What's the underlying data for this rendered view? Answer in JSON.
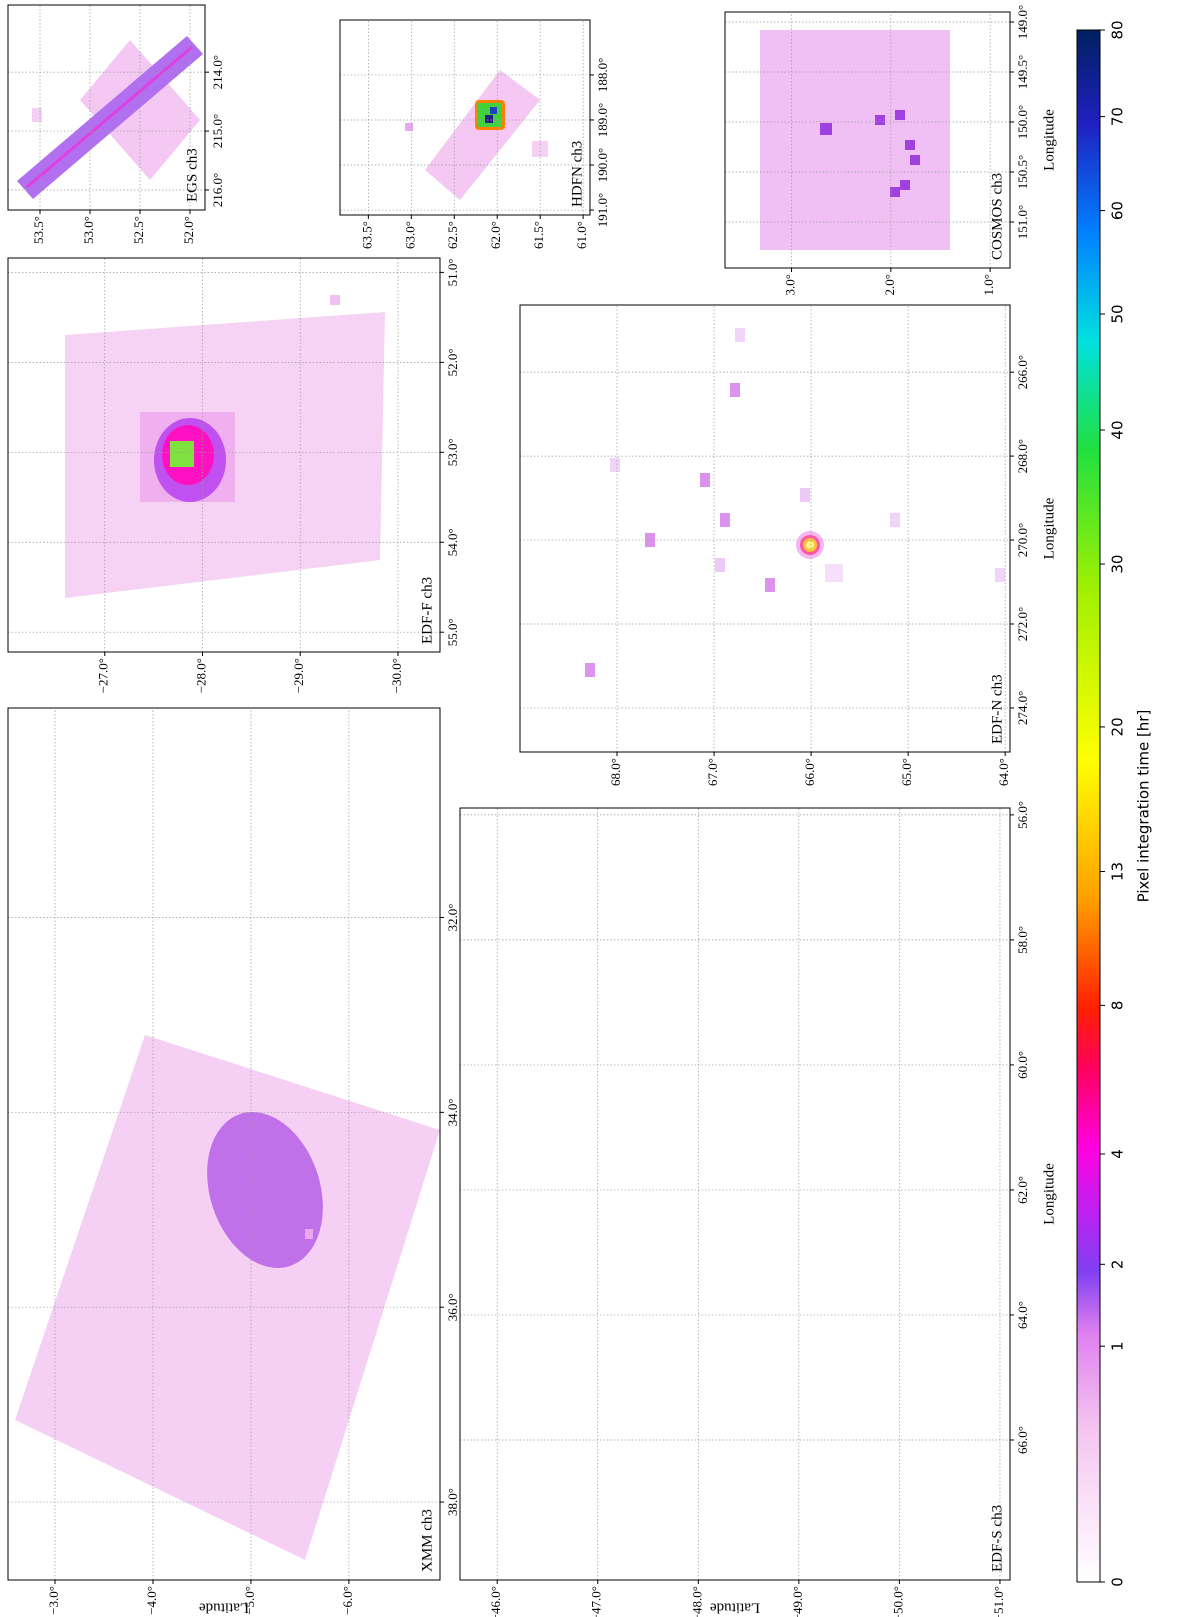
{
  "chart_data": [
    {
      "type": "map",
      "title": "XMM ch3",
      "ylabel": "Latitude",
      "xlim": [
        38.8,
        29.85
      ],
      "xticks": [
        {
          "value": 38,
          "label": "38.0°"
        },
        {
          "value": 36,
          "label": "36.0°"
        },
        {
          "value": 34,
          "label": "34.0°"
        },
        {
          "value": 32,
          "label": "32.0°"
        }
      ],
      "ylim": [
        -6.93,
        -2.52
      ],
      "yticks": [
        {
          "value": -3,
          "label": "−3.0°"
        },
        {
          "value": -4,
          "label": "−4.0°"
        },
        {
          "value": -5,
          "label": "−5.0°"
        },
        {
          "value": -6,
          "label": "−6.0°"
        }
      ],
      "grid": true
    },
    {
      "type": "map",
      "title": "EDF-F ch3",
      "xlim": [
        55.22,
        50.84
      ],
      "xticks": [
        {
          "value": 55,
          "label": "55.0°"
        },
        {
          "value": 54,
          "label": "54.0°"
        },
        {
          "value": 53,
          "label": "53.0°"
        },
        {
          "value": 52,
          "label": "52.0°"
        },
        {
          "value": 51,
          "label": "51.0°"
        }
      ],
      "ylim": [
        -30.43,
        -26.01
      ],
      "yticks": [
        {
          "value": -27,
          "label": "−27.0°"
        },
        {
          "value": -28,
          "label": "−28.0°"
        },
        {
          "value": -29,
          "label": "−29.0°"
        },
        {
          "value": -30,
          "label": "−30.0°"
        }
      ],
      "grid": true
    },
    {
      "type": "map",
      "title": "EGS ch3",
      "xlim": [
        216.34,
        212.86
      ],
      "xticks": [
        {
          "value": 216,
          "label": "216.0°"
        },
        {
          "value": 215,
          "label": "215.0°"
        },
        {
          "value": 214,
          "label": "214.0°"
        }
      ],
      "ylim": [
        51.85,
        53.82
      ],
      "yticks": [
        {
          "value": 53.5,
          "label": "53.5°"
        },
        {
          "value": 53,
          "label": "53.0°"
        },
        {
          "value": 52.5,
          "label": "52.5°"
        },
        {
          "value": 52,
          "label": "52.0°"
        }
      ],
      "grid": true
    },
    {
      "type": "map",
      "title": "HDFN ch3",
      "xlim": [
        191.11,
        186.78
      ],
      "xticks": [
        {
          "value": 191,
          "label": "191.0°"
        },
        {
          "value": 190,
          "label": "190.0°"
        },
        {
          "value": 189,
          "label": "189.0°"
        },
        {
          "value": 188,
          "label": "188.0°"
        }
      ],
      "ylim": [
        60.92,
        63.83
      ],
      "yticks": [
        {
          "value": 63.5,
          "label": "63.5°"
        },
        {
          "value": 63,
          "label": "63.0°"
        },
        {
          "value": 62.5,
          "label": "62.5°"
        },
        {
          "value": 62,
          "label": "62.0°"
        },
        {
          "value": 61.5,
          "label": "61.5°"
        },
        {
          "value": 61,
          "label": "61.0°"
        }
      ],
      "grid": true
    },
    {
      "type": "map",
      "title": "COSMOS ch3",
      "xlabel": "Longitude",
      "xlim": [
        151.46,
        148.9
      ],
      "xticks": [
        {
          "value": 151,
          "label": "151.0°"
        },
        {
          "value": 150.5,
          "label": "150.5°"
        },
        {
          "value": 150,
          "label": "150.0°"
        },
        {
          "value": 149.5,
          "label": "149.5°"
        },
        {
          "value": 149,
          "label": "149.0°"
        }
      ],
      "ylim": [
        0.8,
        3.67
      ],
      "yticks": [
        {
          "value": 3,
          "label": "3.0°"
        },
        {
          "value": 2,
          "label": "2.0°"
        },
        {
          "value": 1,
          "label": "1.0°"
        }
      ],
      "grid": true
    },
    {
      "type": "map",
      "title": "EDF-N ch3",
      "xlabel": "Longitude",
      "xlim": [
        275.05,
        264.4
      ],
      "xticks": [
        {
          "value": 274,
          "label": "274.0°"
        },
        {
          "value": 272,
          "label": "272.0°"
        },
        {
          "value": 270,
          "label": "270.0°"
        },
        {
          "value": 268,
          "label": "268.0°"
        },
        {
          "value": 266,
          "label": "266.0°"
        }
      ],
      "ylim": [
        63.95,
        69.0
      ],
      "yticks": [
        {
          "value": 68,
          "label": "68.0°"
        },
        {
          "value": 67,
          "label": "67.0°"
        },
        {
          "value": 66,
          "label": "66.0°"
        },
        {
          "value": 65,
          "label": "65.0°"
        },
        {
          "value": 64,
          "label": "64.0°"
        }
      ],
      "grid": true
    },
    {
      "type": "map",
      "title": "EDF-S ch3",
      "xlabel": "Longitude",
      "ylabel": "Latitude",
      "xlim": [
        68.24,
        55.89
      ],
      "xticks": [
        {
          "value": 66,
          "label": "66.0°"
        },
        {
          "value": 64,
          "label": "64.0°"
        },
        {
          "value": 62,
          "label": "62.0°"
        },
        {
          "value": 60,
          "label": "60.0°"
        },
        {
          "value": 58,
          "label": "58.0°"
        },
        {
          "value": 56,
          "label": "56.0°"
        }
      ],
      "ylim": [
        -51.1,
        -45.63
      ],
      "yticks": [
        {
          "value": -46,
          "label": "−46.0°"
        },
        {
          "value": -47,
          "label": "−47.0°"
        },
        {
          "value": -48,
          "label": "−48.0°"
        },
        {
          "value": -49,
          "label": "−49.0°"
        },
        {
          "value": -50,
          "label": "−50.0°"
        },
        {
          "value": -51,
          "label": "−51.0°"
        }
      ],
      "grid": true
    },
    {
      "type": "colorbar",
      "label": "Pixel integration time [hr]",
      "lim": [
        0,
        80
      ],
      "scale": "power",
      "gamma": 0.43,
      "ticks": [
        0,
        1,
        2,
        4,
        8,
        13,
        20,
        30,
        40,
        50,
        60,
        70,
        80
      ]
    }
  ]
}
